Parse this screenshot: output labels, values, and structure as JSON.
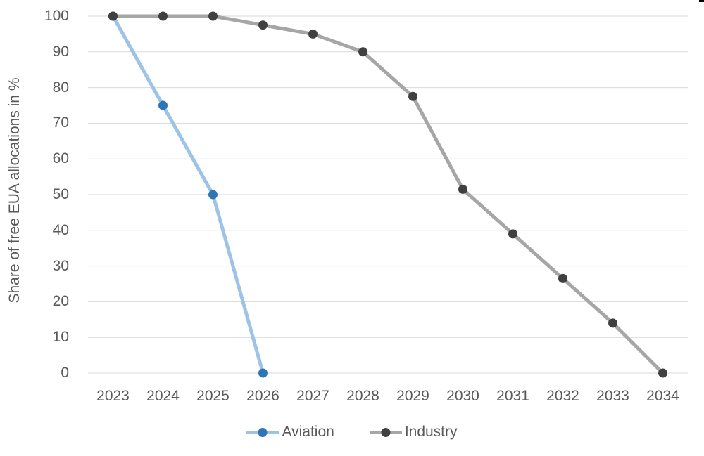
{
  "chart_data": {
    "type": "line",
    "title": "",
    "xlabel": "",
    "ylabel": "Share of free EUA allocations in %",
    "categories": [
      "2023",
      "2024",
      "2025",
      "2026",
      "2027",
      "2028",
      "2029",
      "2030",
      "2031",
      "2032",
      "2033",
      "2034"
    ],
    "yticks": [
      0,
      10,
      20,
      30,
      40,
      50,
      60,
      70,
      80,
      90,
      100
    ],
    "ylim": [
      0,
      100
    ],
    "grid": "horizontal",
    "gridline_color": "#d9d9d9",
    "axis_text_color": "#595959",
    "legend_position": "bottom",
    "series": [
      {
        "name": "Aviation",
        "values": [
          100,
          75,
          50,
          0,
          null,
          null,
          null,
          null,
          null,
          null,
          null,
          null
        ],
        "line_color": "#9dc3e6",
        "marker_color": "#2e75b6"
      },
      {
        "name": "Industry",
        "values": [
          100,
          100,
          100,
          97.5,
          95,
          90,
          77.5,
          51.5,
          39,
          26.5,
          14,
          0
        ],
        "line_color": "#a6a6a6",
        "marker_color": "#404040"
      }
    ]
  }
}
